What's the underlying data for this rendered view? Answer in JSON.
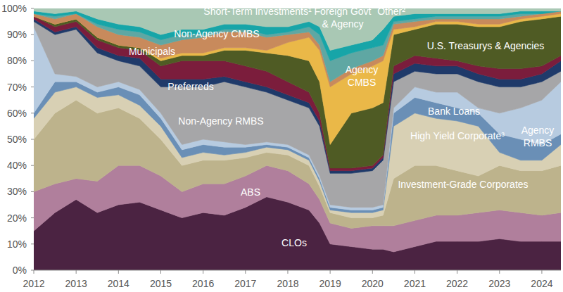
{
  "chart_data": {
    "type": "area",
    "stacked": true,
    "grid": false,
    "x": [
      2012,
      2012.5,
      2013,
      2013.5,
      2014,
      2014.5,
      2015,
      2015.5,
      2016,
      2016.5,
      2017,
      2017.5,
      2018,
      2018.5,
      2018.75,
      2019,
      2019.5,
      2020,
      2020.25,
      2020.5,
      2021,
      2021.5,
      2022,
      2022.5,
      2023,
      2023.5,
      2024,
      2024.45
    ],
    "xlim": [
      2012,
      2024.45
    ],
    "xticks": [
      2012,
      2013,
      2014,
      2015,
      2016,
      2017,
      2018,
      2019,
      2020,
      2021,
      2022,
      2023,
      2024
    ],
    "ylim": [
      0,
      100
    ],
    "yticks": [
      {
        "value": 0,
        "label": "0%"
      },
      {
        "value": 10,
        "label": "10%"
      },
      {
        "value": 20,
        "label": "20%"
      },
      {
        "value": 30,
        "label": "30%"
      },
      {
        "value": 40,
        "label": "40%"
      },
      {
        "value": 50,
        "label": "50%"
      },
      {
        "value": 60,
        "label": "60%"
      },
      {
        "value": 70,
        "label": "70%"
      },
      {
        "value": 80,
        "label": "80%"
      },
      {
        "value": 90,
        "label": "90%"
      },
      {
        "value": 100,
        "label": "100%"
      }
    ],
    "series": [
      {
        "name": "CLOs",
        "color": "#4b2342",
        "values": [
          15,
          22,
          27,
          22,
          25,
          26,
          23,
          20,
          22,
          21,
          24,
          28,
          26,
          23,
          18,
          10,
          9,
          8,
          8,
          7,
          9,
          11,
          11,
          11,
          12,
          11,
          11,
          11
        ]
      },
      {
        "name": "ABS",
        "color": "#b07f9c",
        "values": [
          15,
          11,
          8,
          12,
          15,
          14,
          13,
          10,
          11,
          12,
          12,
          12,
          12,
          10,
          9,
          8,
          7,
          9,
          9,
          10,
          10,
          10,
          10,
          11,
          11,
          11,
          10,
          11
        ]
      },
      {
        "name": "Investment-Grade Corporates",
        "color": "#bdb38c",
        "values": [
          20,
          27,
          30,
          26,
          22,
          18,
          14,
          10,
          9,
          9,
          7,
          5,
          6,
          7,
          5,
          4,
          4,
          3,
          4,
          18,
          21,
          19,
          17,
          14,
          17,
          16,
          17,
          18
        ]
      },
      {
        "name": "High Yield Corporate³",
        "color": "#d8d0b4",
        "values": [
          8,
          8,
          5,
          6,
          5,
          5,
          5,
          3,
          3,
          2,
          2,
          2,
          2,
          2,
          2,
          1,
          2,
          2,
          2,
          20,
          20,
          18,
          19,
          19,
          5,
          4,
          4,
          8
        ]
      },
      {
        "name": "Bank Loans",
        "color": "#6a8fb6",
        "values": [
          2,
          4,
          2,
          2,
          3,
          4,
          3,
          3,
          3,
          3,
          2,
          1,
          1,
          1,
          1,
          1,
          1,
          1,
          1,
          5,
          6,
          6,
          5,
          5,
          7,
          8,
          6,
          4
        ]
      },
      {
        "name": "Agency RMBS",
        "color": "#b7cbe0",
        "values": [
          33,
          3,
          2,
          2,
          2,
          2,
          2,
          2,
          2,
          2,
          1,
          1,
          1,
          1,
          1,
          1,
          1,
          1,
          1,
          2,
          4,
          4,
          6,
          2,
          8,
          12,
          17,
          20
        ]
      },
      {
        "name": "Non-Agency RMBS",
        "color": "#a6a6a8",
        "values": [
          2,
          15,
          18,
          13,
          8,
          9,
          10,
          22,
          20,
          23,
          22,
          19,
          17,
          18,
          19,
          12,
          13,
          14,
          17,
          10,
          6,
          7,
          7,
          10,
          10,
          8,
          7,
          4
        ]
      },
      {
        "name": "Preferreds",
        "color": "#1f3a6a",
        "values": [
          1,
          1,
          1,
          2,
          2,
          3,
          3,
          3,
          3,
          2,
          2,
          2,
          2,
          2,
          2,
          1,
          1,
          1,
          1,
          3,
          3,
          3,
          3,
          3,
          3,
          3,
          3,
          4
        ]
      },
      {
        "name": "Municipals",
        "color": "#7b1d3c",
        "values": [
          1,
          2,
          2,
          3,
          3,
          3,
          5,
          7,
          7,
          6,
          6,
          6,
          5,
          4,
          3,
          1,
          1,
          1,
          1,
          3,
          3,
          3,
          2,
          3,
          4,
          4,
          3,
          2
        ]
      },
      {
        "name": "U.S. Treasurys & Agencies",
        "color": "#4f5b24",
        "values": [
          0,
          1,
          1,
          1,
          1,
          1,
          2,
          2,
          2,
          4,
          6,
          7,
          10,
          12,
          12,
          9,
          21,
          22,
          20,
          12,
          10,
          13,
          14,
          15,
          16,
          18,
          18,
          15
        ]
      },
      {
        "name": "Agency CMBS",
        "color": "#eab848",
        "values": [
          0,
          0,
          0,
          0,
          0,
          0,
          1,
          1,
          1,
          1,
          1,
          1,
          5,
          9,
          12,
          22,
          15,
          16,
          16,
          2,
          1,
          1,
          1,
          1,
          1,
          1,
          1,
          1
        ]
      },
      {
        "name": "Non-Agency CMBS",
        "color": "#c88a5c",
        "values": [
          1,
          2,
          2,
          4,
          4,
          4,
          5,
          5,
          6,
          6,
          6,
          5,
          3,
          2,
          2,
          2,
          2,
          2,
          2,
          2,
          2,
          1,
          1,
          2,
          2,
          1,
          1,
          1
        ]
      },
      {
        "name": "Foreign Govt & Agency",
        "color": "#5fa7a3",
        "values": [
          0,
          1,
          0,
          1,
          2,
          2,
          2,
          2,
          1,
          1,
          1,
          1,
          1,
          2,
          4,
          8,
          6,
          5,
          4,
          1,
          1,
          1,
          1,
          1,
          1,
          1,
          0,
          0
        ]
      },
      {
        "name": "Other²",
        "color": "#17a5a8",
        "values": [
          1,
          1,
          1,
          2,
          2,
          2,
          2,
          2,
          2,
          2,
          2,
          3,
          2,
          2,
          3,
          4,
          3,
          3,
          6,
          2,
          2,
          1,
          1,
          1,
          1,
          1,
          1,
          0
        ]
      },
      {
        "name": "Short-Term Investments¹",
        "color": "#a9c8b4",
        "values": [
          1,
          2,
          1,
          4,
          6,
          7,
          10,
          8,
          8,
          6,
          6,
          7,
          7,
          5,
          7,
          16,
          14,
          12,
          8,
          3,
          2,
          2,
          2,
          2,
          2,
          1,
          1,
          1
        ]
      }
    ]
  }
}
